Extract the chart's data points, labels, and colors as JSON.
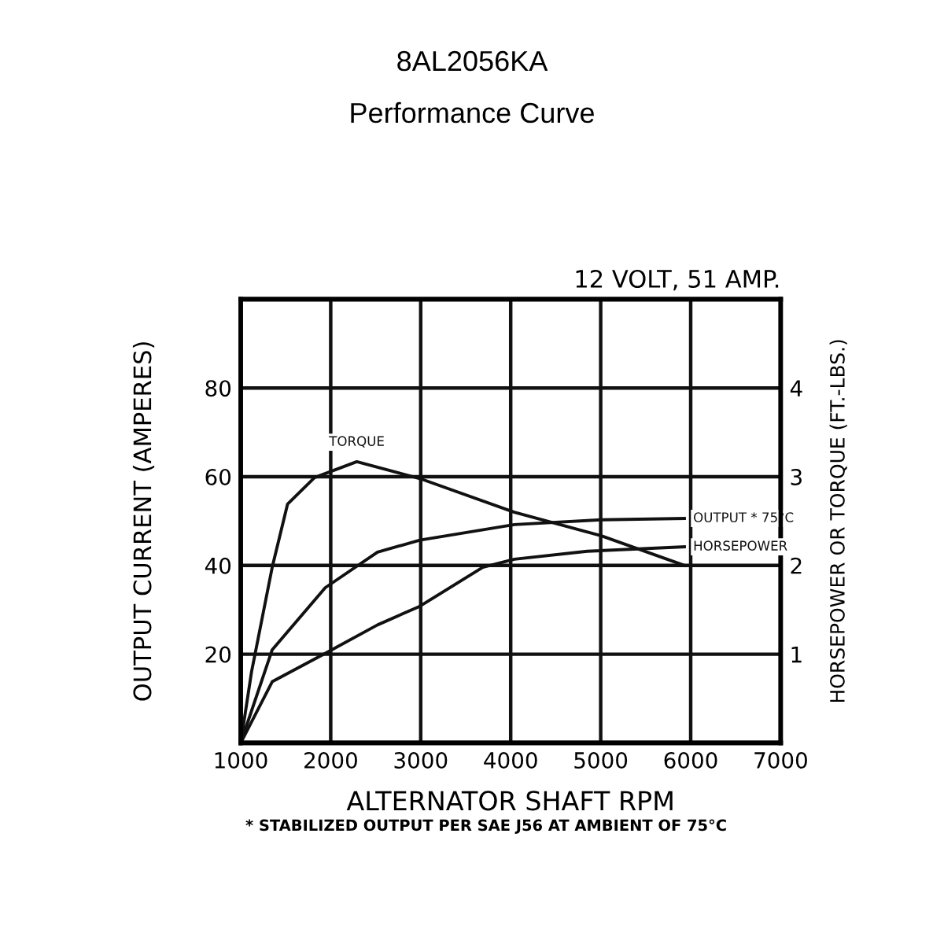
{
  "chart_data": {
    "type": "line",
    "title": "8AL2056KA",
    "subtitle": "Performance Curve",
    "xlabel": "ALTERNATOR SHAFT RPM",
    "ylabel": "OUTPUT CURRENT (AMPERES)",
    "y2label": "HORSEPOWER OR TORQUE (FT.-LBS.)",
    "annotations": [
      "12 VOLT, 51 AMP.",
      "* STABILIZED OUTPUT PER SAE J56 AT AMBIENT OF 75°C"
    ],
    "xlim": [
      1000,
      7000
    ],
    "xticks": [
      1000,
      2000,
      3000,
      4000,
      5000,
      6000,
      7000
    ],
    "ylim": [
      0,
      100
    ],
    "yticks": [
      20,
      40,
      60,
      80
    ],
    "y2lim": [
      0,
      5
    ],
    "y2ticks": [
      1,
      2,
      3,
      4
    ],
    "grid": true,
    "legend": false,
    "series": [
      {
        "name": "TORQUE",
        "color": "#111111",
        "axis": "y2",
        "x": [
          1000,
          1120,
          1350,
          1520,
          1820,
          2290,
          2990,
          4040,
          5020,
          5930
        ],
        "values": [
          0,
          0.8,
          1.98,
          2.69,
          2.99,
          3.17,
          2.98,
          2.6,
          2.33,
          2.0
        ]
      },
      {
        "name": "OUTPUT * 75°C",
        "color": "#111111",
        "axis": "y",
        "x": [
          1000,
          1350,
          1940,
          2520,
          2990,
          4040,
          5020,
          5930
        ],
        "values": [
          0,
          21,
          35,
          43,
          45.7,
          49.2,
          50.3,
          50.6
        ]
      },
      {
        "name": "HORSEPOWER",
        "color": "#111111",
        "axis": "y2",
        "x": [
          1000,
          1350,
          1940,
          2520,
          2990,
          3690,
          4040,
          4850,
          5930
        ],
        "values": [
          0,
          0.69,
          1.01,
          1.33,
          1.54,
          1.98,
          2.07,
          2.16,
          2.21
        ]
      }
    ]
  }
}
